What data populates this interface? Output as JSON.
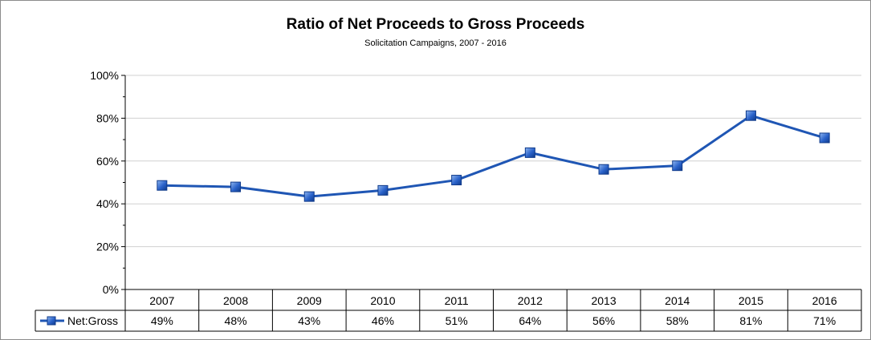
{
  "chart_data": {
    "type": "line",
    "title": "Ratio of Net Proceeds to Gross Proceeds",
    "subtitle": "Solicitation Campaigns, 2007 - 2016",
    "categories": [
      "2007",
      "2008",
      "2009",
      "2010",
      "2011",
      "2012",
      "2013",
      "2014",
      "2015",
      "2016"
    ],
    "series": [
      {
        "name": "Net:Gross",
        "values": [
          48.6,
          47.9,
          43.4,
          46.3,
          51.1,
          63.9,
          56.1,
          57.8,
          81.2,
          70.8
        ],
        "labels": [
          "49%",
          "48%",
          "43%",
          "46%",
          "51%",
          "64%",
          "56%",
          "58%",
          "81%",
          "71%"
        ],
        "color": "#1f56b4"
      }
    ],
    "ylim": [
      0,
      100
    ],
    "yticks": [
      "0%",
      "20%",
      "40%",
      "60%",
      "80%",
      "100%"
    ],
    "grid": true,
    "legend": "data-table-left"
  }
}
